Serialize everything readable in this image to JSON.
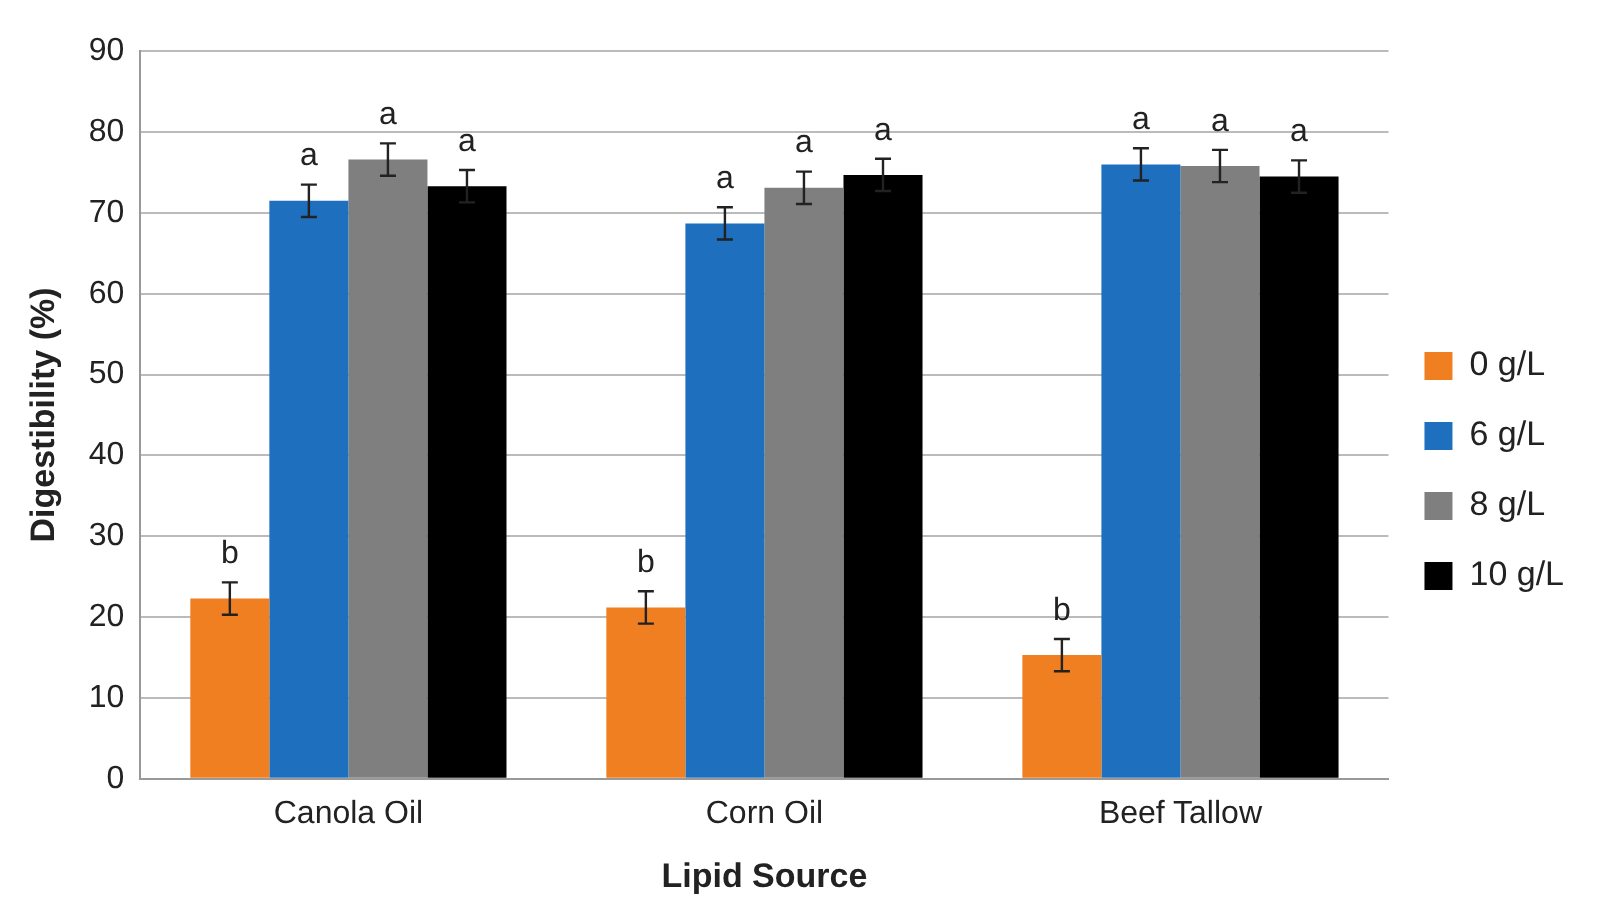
{
  "chart_data": {
    "type": "bar",
    "xlabel": "Lipid Source",
    "ylabel": "Digestibility (%)",
    "categories": [
      "Canola Oil",
      "Corn Oil",
      "Beef Tallow"
    ],
    "series": [
      {
        "name": "0 g/L",
        "color": "#f07f22",
        "values": [
          22.3,
          21.2,
          15.3
        ],
        "errors": [
          2,
          2,
          2
        ],
        "value_labels": [
          "b",
          "b",
          "b"
        ]
      },
      {
        "name": "6 g/L",
        "color": "#1f6fbf",
        "values": [
          71.5,
          68.7,
          76
        ],
        "errors": [
          2,
          2,
          2
        ],
        "value_labels": [
          "a",
          "a",
          "a"
        ]
      },
      {
        "name": "8 g/L",
        "color": "#7f7f7f",
        "values": [
          76.6,
          73.1,
          75.8
        ],
        "errors": [
          2,
          2,
          2
        ],
        "value_labels": [
          "a",
          "a",
          "a"
        ]
      },
      {
        "name": "10 g/L",
        "color": "#000000",
        "values": [
          73.3,
          74.7,
          74.5
        ],
        "errors": [
          2,
          2,
          2
        ],
        "value_labels": [
          "a",
          "a",
          "a"
        ]
      }
    ],
    "ylim": [
      0,
      90
    ],
    "yticks": [
      0,
      10,
      20,
      30,
      40,
      50,
      60,
      70,
      80,
      90
    ],
    "grid": "y",
    "legend": "right"
  }
}
